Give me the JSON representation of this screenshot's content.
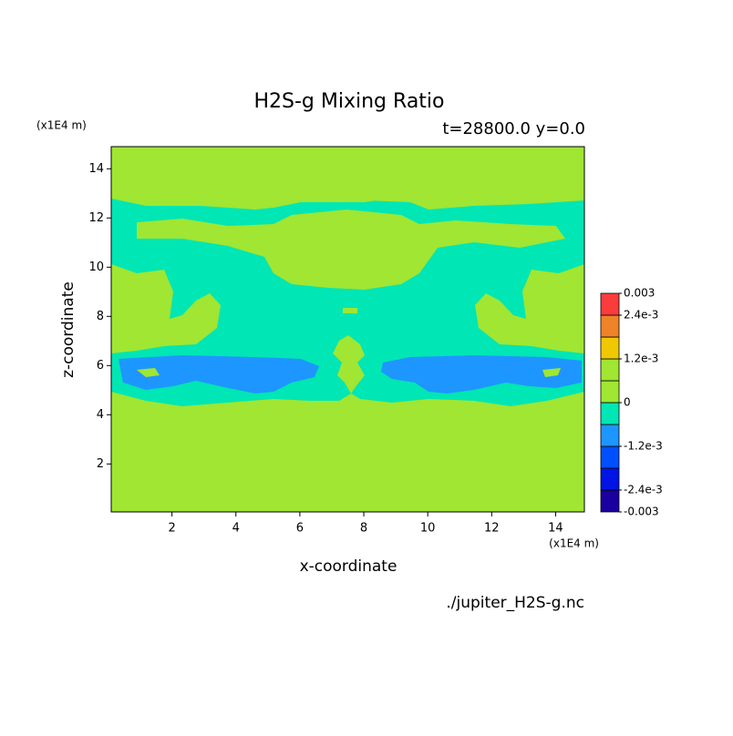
{
  "chart_data": {
    "type": "contour",
    "title": "H2S-g Mixing Ratio",
    "subtitle": "t=28800.0 y=0.0",
    "x_label": "x-coordinate",
    "y_label": "z-coordinate",
    "x_unit": "(x1E4 m)",
    "y_unit": "(x1E4 m)",
    "source": "./jupiter_H2S-g.nc",
    "xlim": [
      0.1,
      14.9
    ],
    "ylim": [
      0.05,
      14.9
    ],
    "xticks": [
      2,
      4,
      6,
      8,
      10,
      12,
      14
    ],
    "yticks": [
      2,
      4,
      6,
      8,
      10,
      12,
      14
    ],
    "colorbar": {
      "levels": [
        -0.003,
        -0.0024,
        -0.0018,
        -0.0012,
        -0.0006,
        0,
        0.0006,
        0.0012,
        0.0018,
        0.0024,
        0.003
      ],
      "colors": [
        "#1a00a0",
        "#0014e6",
        "#0050ff",
        "#1e96ff",
        "#00e6b4",
        "#a0e632",
        "#a0e632",
        "#f0c800",
        "#f08228",
        "#fa3c3c"
      ],
      "ticks": [
        -0.003,
        {
          "value": -0.0024,
          "label": "-2.4e-3"
        },
        {
          "value": -0.0012,
          "label": "-1.2e-3"
        },
        0,
        {
          "value": 0.0012,
          "label": "1.2e-3"
        },
        {
          "value": 0.0024,
          "label": "2.4e-3"
        },
        0.003
      ]
    }
  }
}
